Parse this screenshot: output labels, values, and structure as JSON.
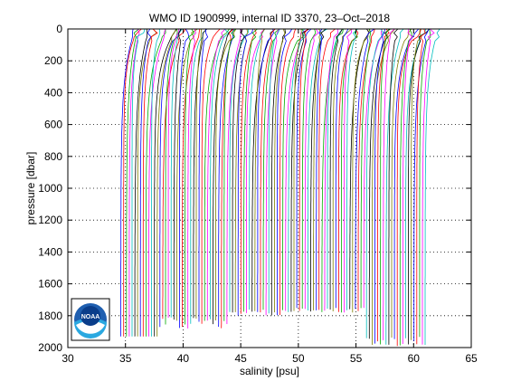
{
  "chart_data": {
    "type": "line",
    "title": "WMO ID 1900999, internal ID 3370, 23–Oct–2018",
    "xlabel": "salinity [psu]",
    "ylabel": "pressure [dbar]",
    "xlim": [
      30,
      65
    ],
    "ylim": [
      0,
      2000
    ],
    "y_reversed": true,
    "grid": true,
    "grid_style": "dotted",
    "x_ticks": [
      30,
      35,
      40,
      45,
      50,
      55,
      60,
      65
    ],
    "y_ticks": [
      0,
      200,
      400,
      600,
      800,
      1000,
      1200,
      1400,
      1600,
      1800,
      2000
    ],
    "profile_description": "Waterfall of profiles, each offset successively in salinity; deep value per profile rises from ~35 to ~61",
    "profile_count": 110,
    "first_profile_deep_salinity": 34.6,
    "last_profile_deep_salinity": 61.0,
    "series_colors": [
      "#0000ff",
      "#ff0000",
      "#00aa00",
      "#ff00ff",
      "#00bfbf",
      "#000000",
      "#7f7f00"
    ]
  },
  "logo": {
    "text": "NOAA"
  }
}
